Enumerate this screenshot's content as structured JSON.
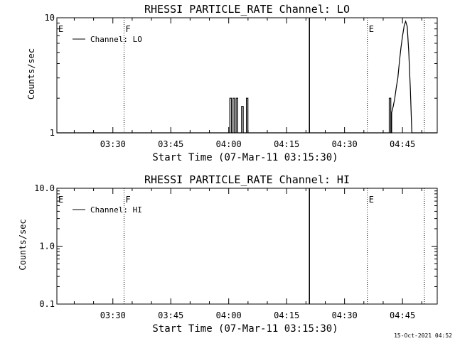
{
  "chart_data": [
    {
      "type": "line",
      "title": "RHESSI PARTICLE_RATE Channel: LO",
      "xlabel": "Start Time (07-Mar-11 03:15:30)",
      "ylabel": "Counts/sec",
      "y_scale": "log",
      "ylim": [
        1,
        10
      ],
      "y_tick_labels": [
        "1",
        "10"
      ],
      "x_range": [
        "03:15:30",
        "04:54:00"
      ],
      "x_tick_labels": [
        "03:30",
        "03:45",
        "04:00",
        "04:15",
        "04:30",
        "04:45"
      ],
      "legend": {
        "placement": "top-left",
        "entries": [
          "Channel: LO"
        ]
      },
      "series": [
        {
          "name": "Channel: LO",
          "points": [
            [
              "03:15:30",
              1
            ],
            [
              "04:00:18",
              1
            ],
            [
              "04:00:18",
              2
            ],
            [
              "04:00:42",
              2
            ],
            [
              "04:00:42",
              1
            ],
            [
              "04:01:07",
              1
            ],
            [
              "04:01:07",
              2
            ],
            [
              "04:01:30",
              2
            ],
            [
              "04:01:30",
              1
            ],
            [
              "04:01:55",
              1
            ],
            [
              "04:01:55",
              2
            ],
            [
              "04:02:20",
              2
            ],
            [
              "04:02:20",
              1
            ],
            [
              "04:03:20",
              1
            ],
            [
              "04:03:20",
              1.7
            ],
            [
              "04:03:45",
              1.7
            ],
            [
              "04:03:45",
              1
            ],
            [
              "04:04:35",
              1
            ],
            [
              "04:04:35",
              2
            ],
            [
              "04:04:58",
              2
            ],
            [
              "04:04:58",
              1
            ],
            [
              "04:41:34",
              1
            ],
            [
              "04:41:34",
              2
            ],
            [
              "04:41:59",
              2
            ],
            [
              "04:41:59",
              1
            ],
            [
              "04:42:12",
              1
            ],
            [
              "04:42:12",
              1.5
            ],
            [
              "04:42:36",
              1.7
            ],
            [
              "04:43:00",
              2
            ],
            [
              "04:43:25",
              2.5
            ],
            [
              "04:43:48",
              3
            ],
            [
              "04:44:13",
              4.2
            ],
            [
              "04:44:37",
              5.5
            ],
            [
              "04:45:02",
              7
            ],
            [
              "04:45:26",
              8.5
            ],
            [
              "04:45:50",
              9.3
            ],
            [
              "04:46:14",
              8.4
            ],
            [
              "04:46:38",
              5
            ],
            [
              "04:47:02",
              2.4
            ],
            [
              "04:47:26",
              1
            ],
            [
              "04:54:00",
              1
            ]
          ]
        }
      ],
      "events": [
        {
          "time": "03:15:30",
          "label": "E",
          "style": "dotted"
        },
        {
          "time": "03:32:54",
          "label": "F",
          "style": "dotted"
        },
        {
          "time": "04:35:54",
          "label": "E",
          "style": "dotted"
        },
        {
          "time": "04:50:40",
          "label": "",
          "style": "dotted"
        },
        {
          "time": "04:20:54",
          "label": "",
          "style": "solid"
        }
      ]
    },
    {
      "type": "line",
      "title": "RHESSI PARTICLE_RATE Channel: HI",
      "xlabel": "Start Time (07-Mar-11 03:15:30)",
      "ylabel": "Counts/sec",
      "y_scale": "log",
      "ylim": [
        0.1,
        10
      ],
      "y_tick_labels": [
        "0.1",
        "1.0",
        "10.0"
      ],
      "x_range": [
        "03:15:30",
        "04:54:00"
      ],
      "x_tick_labels": [
        "03:30",
        "03:45",
        "04:00",
        "04:15",
        "04:30",
        "04:45"
      ],
      "legend": {
        "placement": "top-left",
        "entries": [
          "Channel: HI"
        ]
      },
      "series": [
        {
          "name": "Channel: HI",
          "points": []
        }
      ],
      "events": [
        {
          "time": "03:15:30",
          "label": "E",
          "style": "dotted"
        },
        {
          "time": "03:32:54",
          "label": "F",
          "style": "dotted"
        },
        {
          "time": "04:35:54",
          "label": "E",
          "style": "dotted"
        },
        {
          "time": "04:50:40",
          "label": "",
          "style": "dotted"
        },
        {
          "time": "04:20:54",
          "label": "",
          "style": "solid"
        }
      ]
    }
  ],
  "footer": {
    "timestamp": "15-Oct-2021 04:52"
  }
}
